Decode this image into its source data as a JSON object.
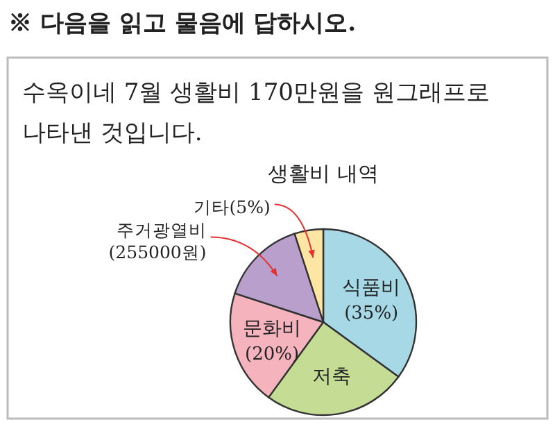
{
  "chart_data": {
    "type": "pie",
    "title": "생활비 내역",
    "annotations": [
      "※ 다음을 읽고 물음에 답하시오.",
      "수옥이네 7월 생활비 170만원을 원그래프로 나타낸 것입니다."
    ],
    "categories": [
      "식품비",
      "저축",
      "문화비",
      "주거광열비 (255000원)",
      "기타"
    ],
    "values": [
      35,
      25,
      20,
      15,
      5
    ],
    "value_labels": [
      "(35%)",
      null,
      "(20%)",
      null,
      "(5%)"
    ],
    "colors": [
      "#a6d8e6",
      "#c5dc94",
      "#f4b3bd",
      "#b9a0cc",
      "#fde5a3"
    ]
  }
}
